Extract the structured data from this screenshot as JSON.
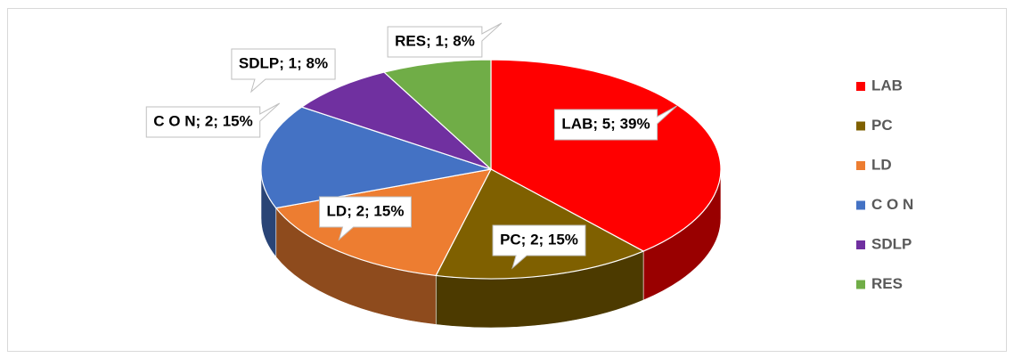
{
  "chart_data": {
    "type": "pie3d",
    "categories": [
      "LAB",
      "PC",
      "LD",
      "C O N",
      "SDLP",
      "RES"
    ],
    "values": [
      5,
      2,
      2,
      2,
      1,
      1
    ],
    "value_labels": [
      "LAB; 5; 39%",
      "PC; 2; 15%",
      "LD; 2; 15%",
      "C O N; 2; 15%",
      "SDLP; 1; 8%",
      "RES; 1; 8%"
    ],
    "colors": [
      "#ff0000",
      "#7f6000",
      "#ed7d31",
      "#4472c4",
      "#7030a0",
      "#70ad47"
    ],
    "legend": "right"
  }
}
